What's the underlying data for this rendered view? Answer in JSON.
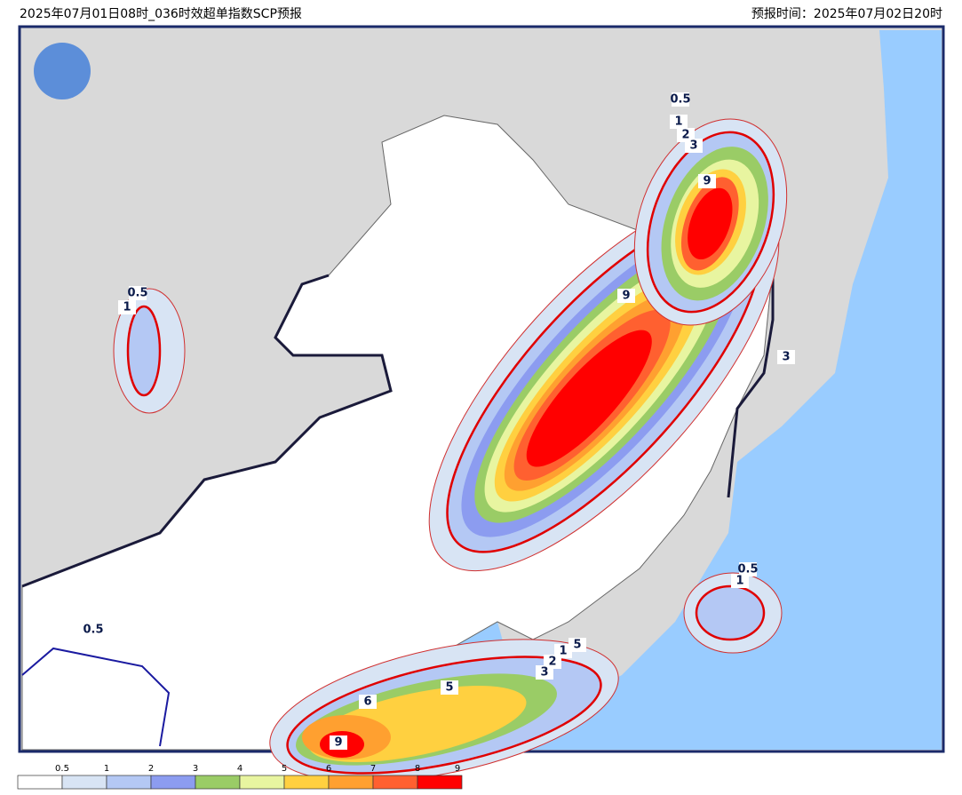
{
  "header": {
    "title": "2025年07月01日08时_036时效超单指数SCP预报",
    "forecast_time": "预报时间：2025年07月02日20时"
  },
  "map": {
    "contour_labels": [
      "0.5",
      "1",
      "2",
      "3",
      "9",
      "9",
      "3",
      "0.5",
      "1",
      "0.5",
      "1",
      "0.5",
      "5",
      "6",
      "1",
      "5",
      "2",
      "3",
      "9"
    ]
  },
  "legend": {
    "levels": [
      "0.5",
      "1",
      "2",
      "3",
      "4",
      "5",
      "6",
      "7",
      "8",
      "9"
    ],
    "colors": [
      "#ffffff",
      "#d8e4f4",
      "#b4c8f4",
      "#8c9cf0",
      "#9acc66",
      "#e8f5a0",
      "#ffd040",
      "#ffa030",
      "#ff6030",
      "#ff0000"
    ]
  }
}
